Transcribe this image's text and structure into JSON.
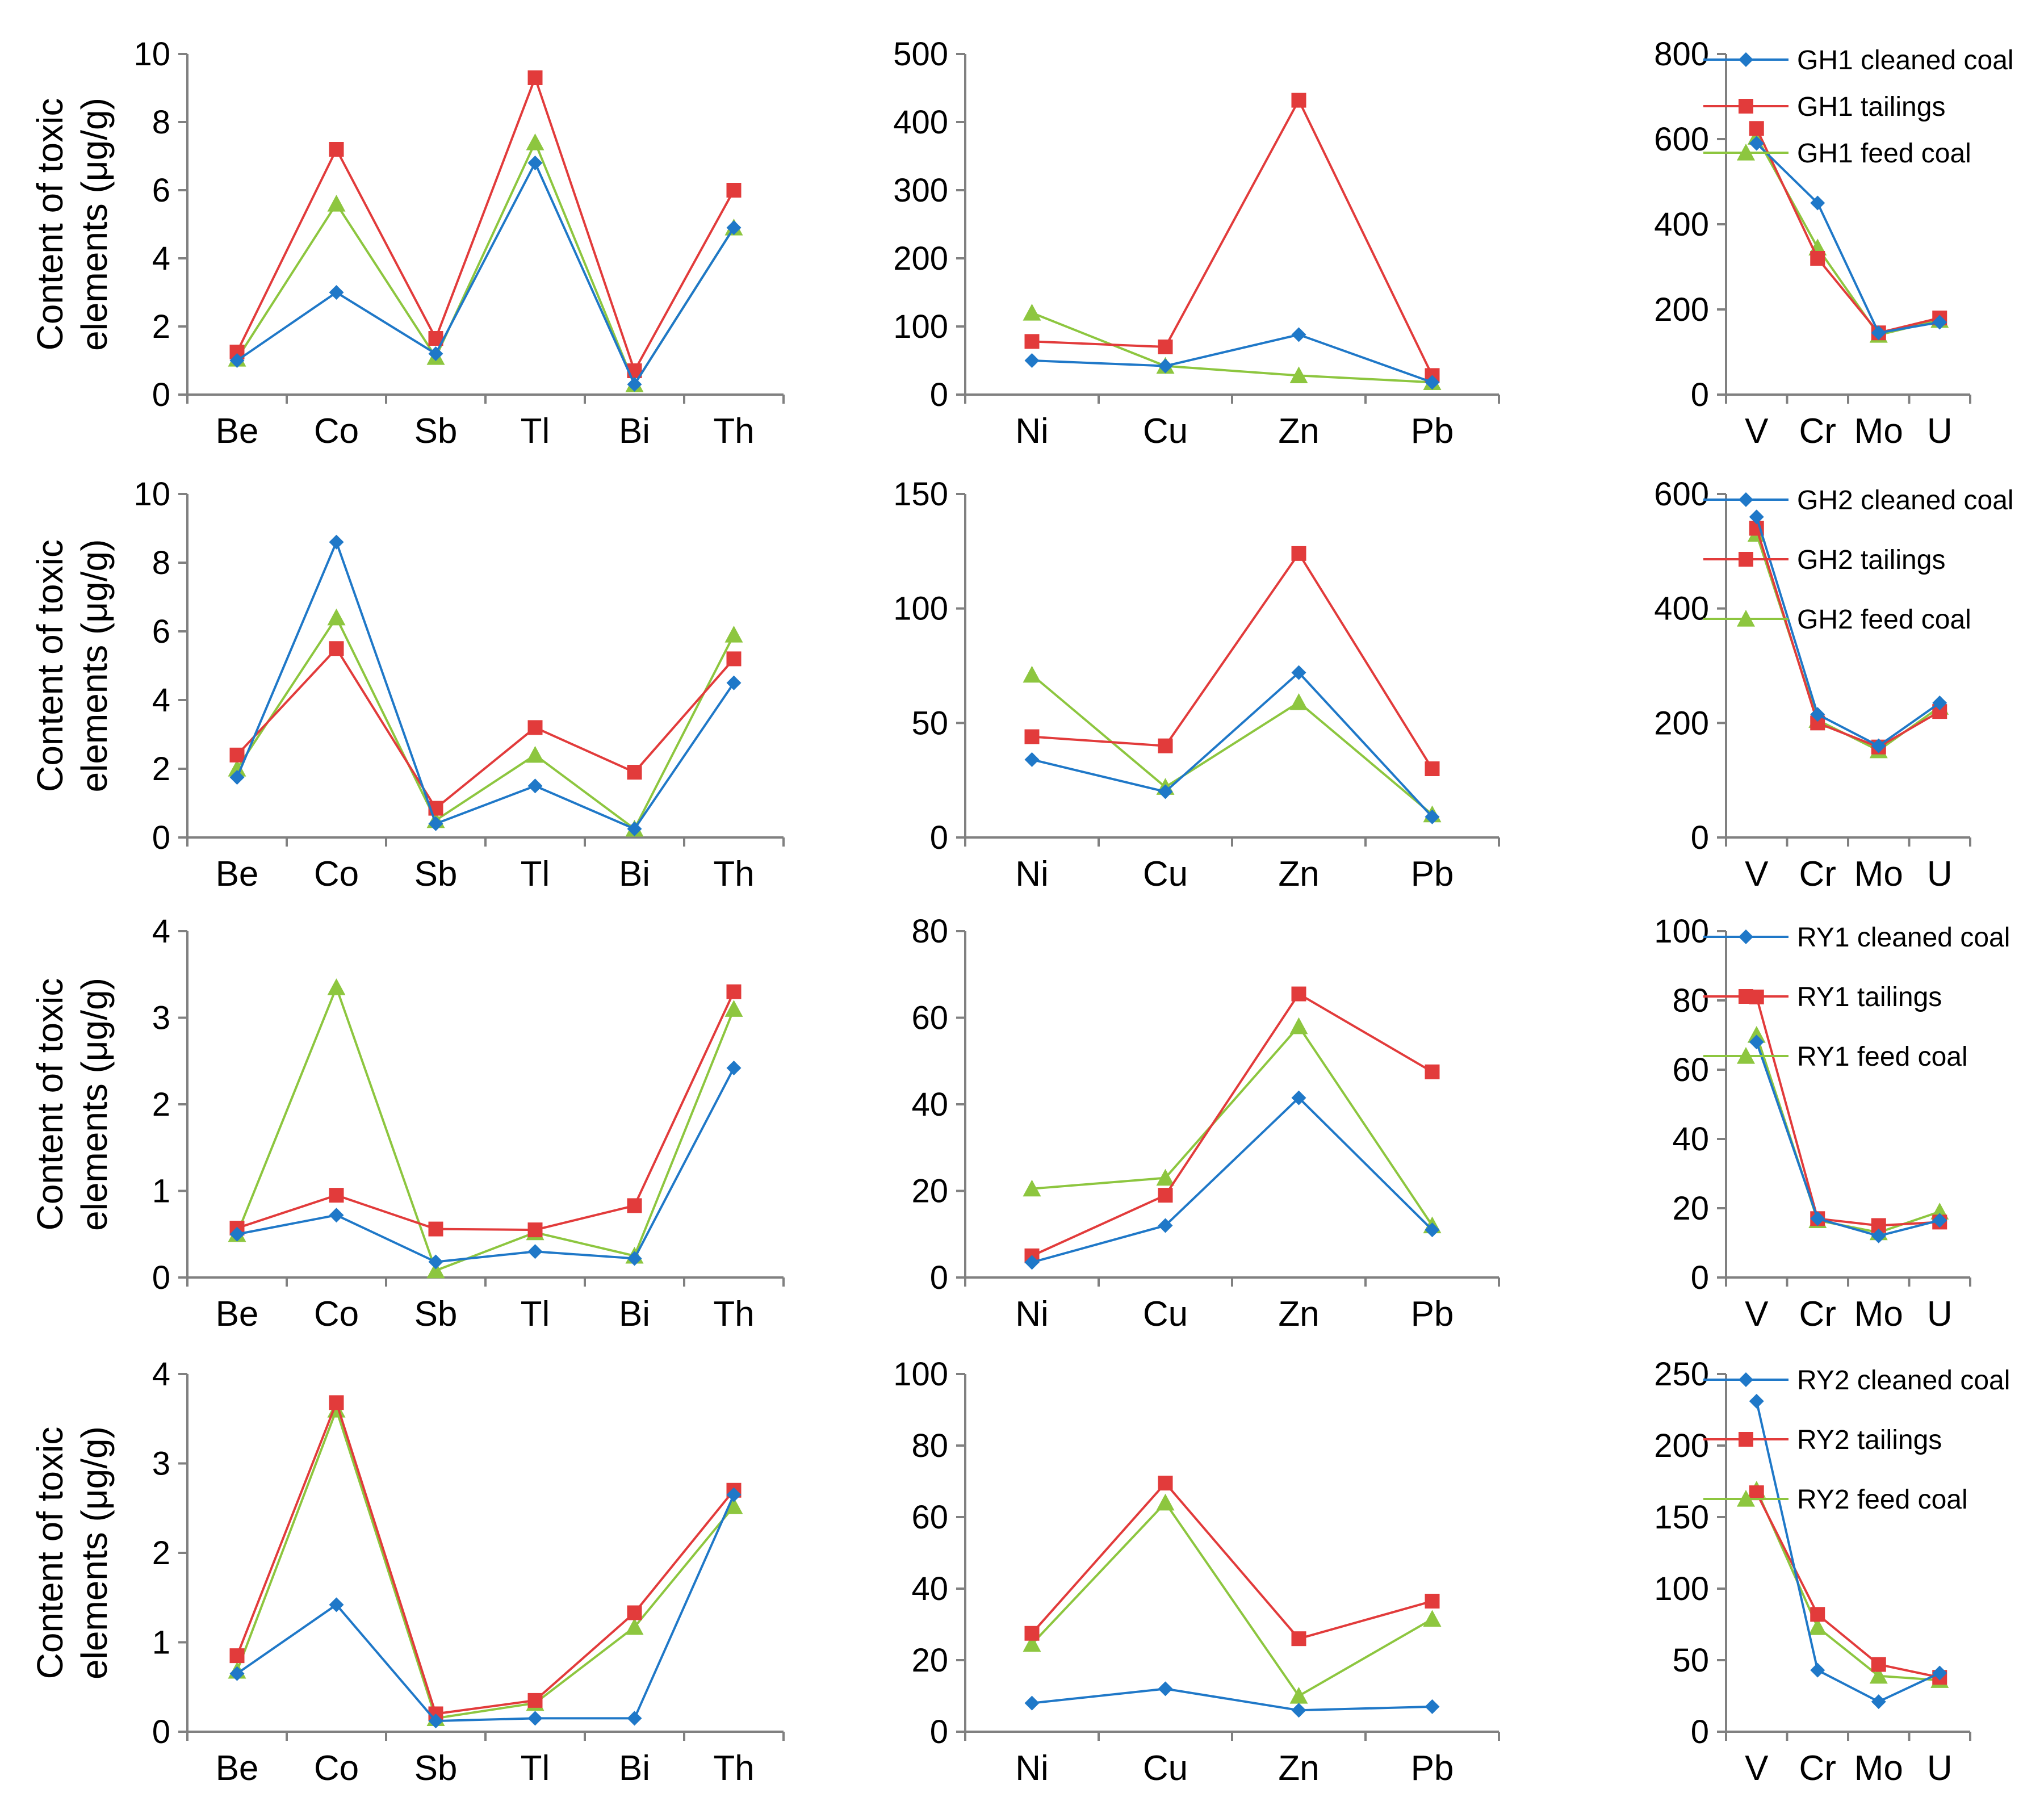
{
  "colors": {
    "cleaned": "#1f78c8",
    "tailings": "#e23b3b",
    "feed": "#8dc63f"
  },
  "series_markers": {
    "cleaned": "diamond-marker",
    "tailings": "square-marker",
    "feed": "triangle-marker"
  },
  "y_axis_label_line1": "Content  of  toxic",
  "y_axis_label_line2": "elements (μg/g)",
  "chart_data": [
    {
      "id": "gh1-a",
      "type": "line",
      "categories": [
        "Be",
        "Co",
        "Sb",
        "Tl",
        "Bi",
        "Th"
      ],
      "ylim": [
        0,
        10
      ],
      "ticks": [
        0,
        2,
        4,
        6,
        8,
        10
      ],
      "series": [
        {
          "key": "cleaned",
          "name": "GH1 cleaned coal",
          "values": [
            1.0,
            3.0,
            1.2,
            6.8,
            0.3,
            4.9
          ]
        },
        {
          "key": "tailings",
          "name": "GH1 tailings",
          "values": [
            1.25,
            7.2,
            1.65,
            9.3,
            0.7,
            6.0
          ]
        },
        {
          "key": "feed",
          "name": "GH1 feed coal",
          "values": [
            1.05,
            5.6,
            1.1,
            7.4,
            0.3,
            4.9
          ]
        }
      ]
    },
    {
      "id": "gh1-b",
      "type": "line",
      "categories": [
        "Ni",
        "Cu",
        "Zn",
        "Pb"
      ],
      "ylim": [
        0,
        500
      ],
      "ticks": [
        0,
        100,
        200,
        300,
        400,
        500
      ],
      "series": [
        {
          "key": "cleaned",
          "name": "GH1 cleaned coal",
          "values": [
            50,
            42,
            88,
            18
          ]
        },
        {
          "key": "tailings",
          "name": "GH1 tailings",
          "values": [
            78,
            70,
            432,
            28
          ]
        },
        {
          "key": "feed",
          "name": "GH1 feed coal",
          "values": [
            120,
            42,
            28,
            18
          ]
        }
      ]
    },
    {
      "id": "gh1-c",
      "type": "line",
      "categories": [
        "V",
        "Cr",
        "Mo",
        "U"
      ],
      "ylim": [
        0,
        800
      ],
      "ticks": [
        0,
        200,
        400,
        600,
        800
      ],
      "legend": {
        "items": [
          "GH1 cleaned coal",
          "GH1 tailings",
          "GH1 feed coal"
        ],
        "position": "top-right"
      },
      "series": [
        {
          "key": "cleaned",
          "name": "GH1 cleaned coal",
          "values": [
            590,
            450,
            145,
            170
          ]
        },
        {
          "key": "tailings",
          "name": "GH1 tailings",
          "values": [
            625,
            320,
            145,
            180
          ]
        },
        {
          "key": "feed",
          "name": "GH1 feed coal",
          "values": [
            605,
            345,
            140,
            175
          ]
        }
      ]
    },
    {
      "id": "gh2-a",
      "type": "line",
      "categories": [
        "Be",
        "Co",
        "Sb",
        "Tl",
        "Bi",
        "Th"
      ],
      "ylim": [
        0,
        10
      ],
      "ticks": [
        0,
        2,
        4,
        6,
        8,
        10
      ],
      "series": [
        {
          "key": "cleaned",
          "name": "GH2 cleaned coal",
          "values": [
            1.75,
            8.6,
            0.4,
            1.5,
            0.25,
            4.5
          ]
        },
        {
          "key": "tailings",
          "name": "GH2 tailings",
          "values": [
            2.4,
            5.5,
            0.85,
            3.2,
            1.9,
            5.2
          ]
        },
        {
          "key": "feed",
          "name": "GH2 feed coal",
          "values": [
            2.0,
            6.4,
            0.5,
            2.4,
            0.25,
            5.9
          ]
        }
      ]
    },
    {
      "id": "gh2-b",
      "type": "line",
      "categories": [
        "Ni",
        "Cu",
        "Zn",
        "Pb"
      ],
      "ylim": [
        0,
        150
      ],
      "ticks": [
        0,
        50,
        100,
        150
      ],
      "series": [
        {
          "key": "cleaned",
          "name": "GH2 cleaned coal",
          "values": [
            34,
            20,
            72,
            9
          ]
        },
        {
          "key": "tailings",
          "name": "GH2 tailings",
          "values": [
            44,
            40,
            124,
            30
          ]
        },
        {
          "key": "feed",
          "name": "GH2 feed coal",
          "values": [
            71,
            22,
            59,
            10
          ]
        }
      ]
    },
    {
      "id": "gh2-c",
      "type": "line",
      "categories": [
        "V",
        "Cr",
        "Mo",
        "U"
      ],
      "ylim": [
        0,
        600
      ],
      "ticks": [
        0,
        200,
        400,
        600
      ],
      "legend": {
        "items": [
          "GH2 cleaned coal",
          "GH2 tailings",
          "GH2 feed coal"
        ],
        "position": "top-right"
      },
      "series": [
        {
          "key": "cleaned",
          "name": "GH2 cleaned coal",
          "values": [
            560,
            215,
            160,
            235
          ]
        },
        {
          "key": "tailings",
          "name": "GH2 tailings",
          "values": [
            540,
            200,
            158,
            220
          ]
        },
        {
          "key": "feed",
          "name": "GH2 feed coal",
          "values": [
            530,
            205,
            152,
            228
          ]
        }
      ]
    },
    {
      "id": "ry1-a",
      "type": "line",
      "categories": [
        "Be",
        "Co",
        "Sb",
        "Tl",
        "Bi",
        "Th"
      ],
      "ylim": [
        0,
        4
      ],
      "ticks": [
        0,
        1,
        2,
        3,
        4
      ],
      "series": [
        {
          "key": "cleaned",
          "name": "RY1 cleaned coal",
          "values": [
            0.5,
            0.72,
            0.18,
            0.3,
            0.22,
            2.42
          ]
        },
        {
          "key": "tailings",
          "name": "RY1 tailings",
          "values": [
            0.57,
            0.95,
            0.56,
            0.55,
            0.83,
            3.3
          ]
        },
        {
          "key": "feed",
          "name": "RY1 feed coal",
          "values": [
            0.5,
            3.35,
            0.08,
            0.52,
            0.25,
            3.1
          ]
        }
      ]
    },
    {
      "id": "ry1-b",
      "type": "line",
      "categories": [
        "Ni",
        "Cu",
        "Zn",
        "Pb"
      ],
      "ylim": [
        0,
        80
      ],
      "ticks": [
        0,
        20,
        40,
        60,
        80
      ],
      "series": [
        {
          "key": "cleaned",
          "name": "RY1 cleaned coal",
          "values": [
            3.5,
            12,
            41.5,
            11
          ]
        },
        {
          "key": "tailings",
          "name": "RY1 tailings",
          "values": [
            5,
            19,
            65.5,
            47.5
          ]
        },
        {
          "key": "feed",
          "name": "RY1 feed coal",
          "values": [
            20.5,
            23,
            58,
            12
          ]
        }
      ]
    },
    {
      "id": "ry1-c",
      "type": "line",
      "categories": [
        "V",
        "Cr",
        "Mo",
        "U"
      ],
      "ylim": [
        0,
        100
      ],
      "ticks": [
        0,
        20,
        40,
        60,
        80,
        100
      ],
      "legend": {
        "items": [
          "RY1 cleaned coal",
          "RY1 tailings",
          "RY1 feed coal"
        ],
        "position": "top-right"
      },
      "series": [
        {
          "key": "cleaned",
          "name": "RY1 cleaned coal",
          "values": [
            68,
            17,
            12,
            16.5
          ]
        },
        {
          "key": "tailings",
          "name": "RY1 tailings",
          "values": [
            81,
            17,
            15,
            16
          ]
        },
        {
          "key": "feed",
          "name": "RY1 feed coal",
          "values": [
            70,
            16.5,
            13,
            19
          ]
        }
      ]
    },
    {
      "id": "ry2-a",
      "type": "line",
      "categories": [
        "Be",
        "Co",
        "Sb",
        "Tl",
        "Bi",
        "Th"
      ],
      "ylim": [
        0,
        4
      ],
      "ticks": [
        0,
        1,
        2,
        3,
        4
      ],
      "series": [
        {
          "key": "cleaned",
          "name": "RY2 cleaned coal",
          "values": [
            0.65,
            1.42,
            0.12,
            0.15,
            0.15,
            2.65
          ]
        },
        {
          "key": "tailings",
          "name": "RY2 tailings",
          "values": [
            0.85,
            3.68,
            0.2,
            0.35,
            1.33,
            2.7
          ]
        },
        {
          "key": "feed",
          "name": "RY2 feed coal",
          "values": [
            0.68,
            3.6,
            0.15,
            0.32,
            1.17,
            2.52
          ]
        }
      ]
    },
    {
      "id": "ry2-b",
      "type": "line",
      "categories": [
        "Ni",
        "Cu",
        "Zn",
        "Pb"
      ],
      "ylim": [
        0,
        100
      ],
      "ticks": [
        0,
        20,
        40,
        60,
        80,
        100
      ],
      "series": [
        {
          "key": "cleaned",
          "name": "RY2 cleaned coal",
          "values": [
            8,
            12,
            6,
            7
          ]
        },
        {
          "key": "tailings",
          "name": "RY2 tailings",
          "values": [
            27.5,
            69.5,
            26,
            36.5
          ]
        },
        {
          "key": "feed",
          "name": "RY2 feed coal",
          "values": [
            24.5,
            64,
            10,
            31.5
          ]
        }
      ]
    },
    {
      "id": "ry2-c",
      "type": "line",
      "categories": [
        "V",
        "Cr",
        "Mo",
        "U"
      ],
      "ylim": [
        0,
        250
      ],
      "ticks": [
        0,
        50,
        100,
        150,
        200,
        250
      ],
      "legend": {
        "items": [
          "RY2 cleaned coal",
          "RY2 tailings",
          "RY2 feed coal"
        ],
        "position": "top-right"
      },
      "series": [
        {
          "key": "cleaned",
          "name": "RY2 cleaned coal",
          "values": [
            231,
            43,
            21,
            41
          ]
        },
        {
          "key": "tailings",
          "name": "RY2 tailings",
          "values": [
            167,
            82,
            47,
            38
          ]
        },
        {
          "key": "feed",
          "name": "RY2 feed coal",
          "values": [
            169,
            73,
            39,
            36
          ]
        }
      ]
    }
  ]
}
